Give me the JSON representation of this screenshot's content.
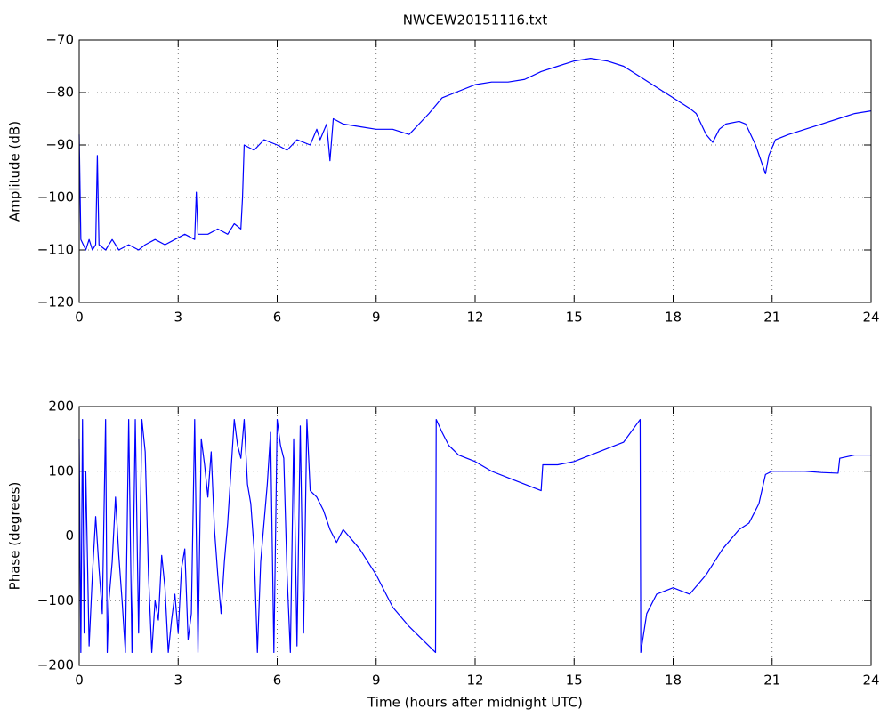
{
  "chart_data": [
    {
      "type": "line",
      "title": "NWCEW20151116.txt",
      "y_label": "Amplitude (dB)",
      "xlim": [
        0,
        24
      ],
      "xticks": [
        0,
        3,
        6,
        9,
        12,
        15,
        18,
        21,
        24
      ],
      "ylim": [
        -120,
        -70
      ],
      "yticks": [
        {
          "value": -120,
          "label": "−120"
        },
        {
          "value": -110,
          "label": "−110"
        },
        {
          "value": -100,
          "label": "−100"
        },
        {
          "value": -90,
          "label": "−90"
        },
        {
          "value": -80,
          "label": "−80"
        },
        {
          "value": -70,
          "label": "−70"
        }
      ],
      "grid": true,
      "x": [
        0,
        0.05,
        0.2,
        0.3,
        0.4,
        0.5,
        0.55,
        0.6,
        0.8,
        1.0,
        1.2,
        1.5,
        1.8,
        2.0,
        2.3,
        2.6,
        2.9,
        3.2,
        3.5,
        3.55,
        3.6,
        3.9,
        4.2,
        4.5,
        4.7,
        4.9,
        4.95,
        5.0,
        5.3,
        5.6,
        6.0,
        6.3,
        6.6,
        7.0,
        7.2,
        7.3,
        7.5,
        7.6,
        7.7,
        8.0,
        8.5,
        9.0,
        9.5,
        10.0,
        10.3,
        10.6,
        11.0,
        11.4,
        12.0,
        12.5,
        13.0,
        13.5,
        14.0,
        14.5,
        15.0,
        15.5,
        16.0,
        16.5,
        17.0,
        17.5,
        18.0,
        18.5,
        18.7,
        19.0,
        19.2,
        19.4,
        19.6,
        20.0,
        20.2,
        20.5,
        20.8,
        20.9,
        21.1,
        21.5,
        22.0,
        22.5,
        23.0,
        23.5,
        24.0
      ],
      "series": [
        {
          "color": "#0000ff",
          "values": [
            -88,
            -108,
            -110,
            -108,
            -110,
            -109,
            -92,
            -109,
            -110,
            -108,
            -110,
            -109,
            -110,
            -109,
            -108,
            -109,
            -108,
            -107,
            -108,
            -99,
            -107,
            -107,
            -106,
            -107,
            -105,
            -106,
            -100,
            -90,
            -91,
            -89,
            -90,
            -91,
            -89,
            -90,
            -87,
            -89,
            -86,
            -93,
            -85,
            -86,
            -86.5,
            -87,
            -87,
            -88,
            -86,
            -84,
            -81,
            -80,
            -78.5,
            -78,
            -78,
            -77.5,
            -76,
            -75,
            -74,
            -73.5,
            -74,
            -75,
            -77,
            -79,
            -81,
            -83,
            -84,
            -88,
            -89.5,
            -87,
            -86,
            -85.5,
            -86,
            -90,
            -95.5,
            -92,
            -89,
            -88,
            -87,
            -86,
            -85,
            -84,
            -83.5
          ]
        }
      ]
    },
    {
      "type": "line",
      "y_label": "Phase (degrees)",
      "x_label": "Time (hours after midnight UTC)",
      "xlim": [
        0,
        24
      ],
      "xticks": [
        0,
        3,
        6,
        9,
        12,
        15,
        18,
        21,
        24
      ],
      "ylim": [
        -200,
        200
      ],
      "yticks": [
        {
          "value": -200,
          "label": "−200"
        },
        {
          "value": -100,
          "label": "−100"
        },
        0,
        100,
        200
      ],
      "grid": true,
      "x": [
        0,
        0.05,
        0.1,
        0.15,
        0.2,
        0.3,
        0.4,
        0.5,
        0.6,
        0.7,
        0.8,
        0.85,
        0.9,
        1.0,
        1.1,
        1.2,
        1.3,
        1.4,
        1.5,
        1.6,
        1.7,
        1.8,
        1.9,
        2.0,
        2.1,
        2.2,
        2.3,
        2.4,
        2.5,
        2.6,
        2.7,
        2.8,
        2.9,
        3.0,
        3.1,
        3.2,
        3.3,
        3.4,
        3.5,
        3.6,
        3.7,
        3.8,
        3.9,
        4.0,
        4.1,
        4.2,
        4.3,
        4.4,
        4.5,
        4.6,
        4.7,
        4.8,
        4.9,
        5.0,
        5.1,
        5.2,
        5.3,
        5.4,
        5.5,
        5.6,
        5.7,
        5.8,
        5.9,
        6.0,
        6.1,
        6.2,
        6.3,
        6.4,
        6.5,
        6.6,
        6.7,
        6.8,
        6.9,
        7.0,
        7.2,
        7.4,
        7.6,
        7.8,
        8.0,
        8.5,
        9.0,
        9.5,
        10.0,
        10.5,
        10.8,
        10.82,
        11.0,
        11.2,
        11.5,
        12.0,
        12.5,
        13.0,
        13.5,
        14.0,
        14.05,
        14.5,
        15.0,
        15.5,
        16.0,
        16.5,
        17.0,
        17.02,
        17.2,
        17.5,
        18.0,
        18.5,
        19.0,
        19.5,
        20.0,
        20.3,
        20.6,
        20.8,
        21.0,
        21.5,
        22.0,
        22.5,
        23.0,
        23.05,
        23.5,
        24.0
      ],
      "series": [
        {
          "color": "#0000ff",
          "values": [
            150,
            -180,
            180,
            -150,
            100,
            -170,
            -60,
            30,
            -50,
            -120,
            180,
            -180,
            -100,
            -40,
            60,
            -30,
            -100,
            -180,
            180,
            -180,
            180,
            -150,
            180,
            130,
            -60,
            -180,
            -100,
            -130,
            -30,
            -80,
            -180,
            -130,
            -90,
            -150,
            -50,
            -20,
            -160,
            -120,
            180,
            -180,
            150,
            110,
            60,
            130,
            10,
            -60,
            -120,
            -40,
            20,
            100,
            180,
            140,
            120,
            180,
            80,
            50,
            -20,
            -180,
            -40,
            20,
            80,
            160,
            -180,
            180,
            140,
            120,
            -60,
            -180,
            150,
            -170,
            170,
            -150,
            180,
            70,
            60,
            40,
            10,
            -10,
            10,
            -20,
            -60,
            -110,
            -140,
            -165,
            -180,
            180,
            160,
            140,
            125,
            115,
            100,
            90,
            80,
            70,
            110,
            110,
            115,
            125,
            135,
            145,
            180,
            -180,
            -120,
            -90,
            -80,
            -90,
            -60,
            -20,
            10,
            20,
            50,
            95,
            100,
            100,
            100,
            98,
            97,
            120,
            125,
            125
          ]
        }
      ]
    }
  ]
}
